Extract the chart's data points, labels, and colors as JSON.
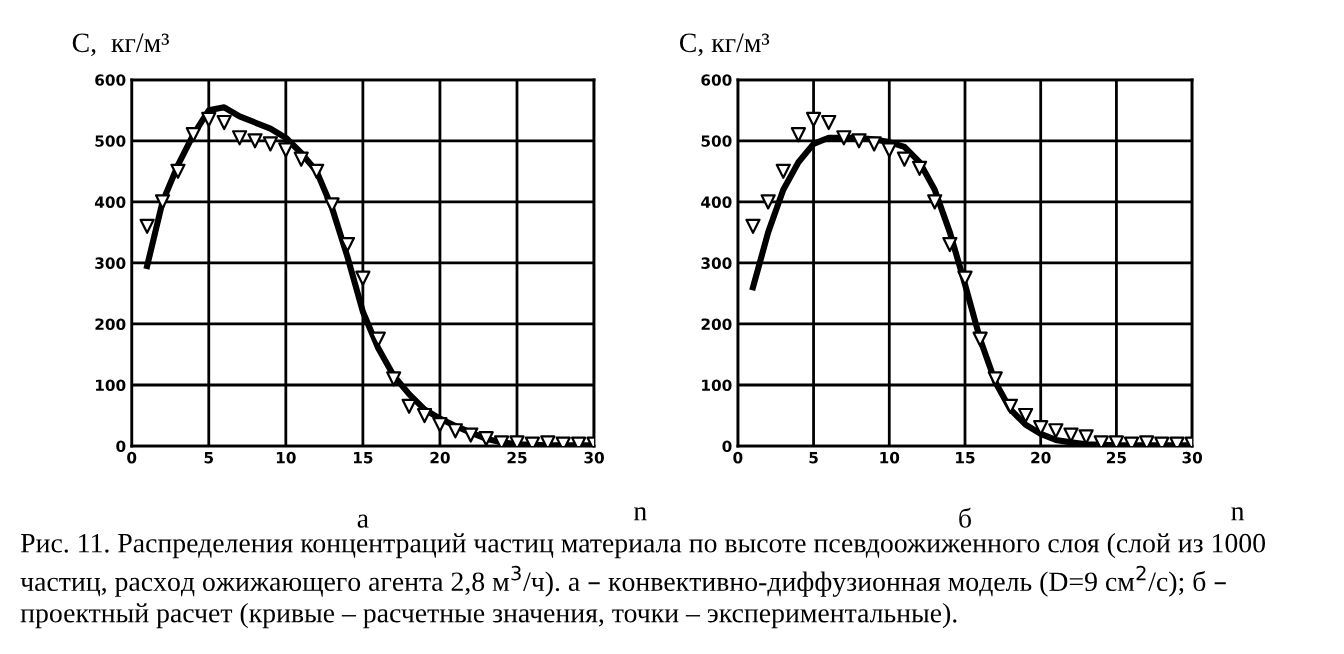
{
  "chart_data": [
    {
      "type": "line",
      "title": "а",
      "xlabel": "n",
      "ylabel": "C,  кг/м³",
      "xlim": [
        0,
        30
      ],
      "ylim": [
        0,
        600
      ],
      "xticks": [
        0,
        5,
        10,
        15,
        20,
        25,
        30
      ],
      "yticks": [
        0,
        100,
        200,
        300,
        400,
        500,
        600
      ],
      "grid": true,
      "legend": false,
      "annotations": [
        "Рис. 11. Распределения концентраций частиц материала по высоте псевдоожиженного слоя (слой из 1000 частиц, расход ожижающего агента 2,8 м$^{3}$/ч). а – конвективно-диффузионная модель (D=9 см$^{2}$/с); б – проектный расчет (кривые – расчетные значения, точки – экспериментальные)."
      ],
      "series": [
        {
          "type": "line",
          "color": "#000000",
          "marker": "none",
          "line_style": "solid",
          "x": [
            1,
            2,
            3,
            4,
            5,
            6,
            7,
            8,
            9,
            10,
            11,
            12,
            13,
            14,
            15,
            16,
            17,
            18,
            19,
            20,
            21,
            22,
            23,
            24,
            25,
            26,
            27,
            28,
            29,
            30
          ],
          "values": [
            295,
            400,
            460,
            510,
            550,
            555,
            540,
            530,
            520,
            505,
            480,
            450,
            390,
            310,
            220,
            160,
            115,
            85,
            60,
            45,
            33,
            22,
            12,
            6,
            3,
            2,
            1,
            1,
            1,
            1
          ]
        },
        {
          "type": "scatter",
          "color": "#000000",
          "marker": "triangle",
          "x": [
            1,
            2,
            3,
            4,
            5,
            6,
            7,
            8,
            9,
            10,
            11,
            12,
            13,
            14,
            15,
            16,
            17,
            18,
            19,
            20,
            21,
            22,
            23,
            24,
            25,
            26,
            27,
            28,
            29,
            30
          ],
          "values": [
            360,
            400,
            450,
            510,
            535,
            530,
            505,
            500,
            495,
            485,
            470,
            450,
            395,
            330,
            275,
            175,
            110,
            65,
            50,
            35,
            25,
            18,
            12,
            5,
            5,
            3,
            5,
            3,
            3,
            3
          ]
        }
      ]
    },
    {
      "type": "line",
      "title": "б",
      "xlabel": "n",
      "ylabel": "C, кг/м³",
      "xlim": [
        0,
        30
      ],
      "ylim": [
        0,
        600
      ],
      "xticks": [
        0,
        5,
        10,
        15,
        20,
        25,
        30
      ],
      "yticks": [
        0,
        100,
        200,
        300,
        400,
        500,
        600
      ],
      "grid": true,
      "legend": false,
      "series": [
        {
          "type": "line",
          "color": "#000000",
          "marker": "none",
          "line_style": "solid",
          "x": [
            1,
            2,
            3,
            4,
            5,
            6,
            7,
            8,
            9,
            10,
            11,
            12,
            13,
            14,
            15,
            16,
            17,
            18,
            19,
            20,
            21,
            22,
            23,
            24,
            25,
            26,
            27,
            28,
            29,
            30
          ],
          "values": [
            260,
            350,
            420,
            465,
            495,
            505,
            505,
            505,
            502,
            498,
            490,
            465,
            420,
            350,
            265,
            175,
            105,
            60,
            35,
            20,
            10,
            6,
            3,
            2,
            1,
            1,
            1,
            1,
            1,
            1
          ]
        },
        {
          "type": "scatter",
          "color": "#000000",
          "marker": "triangle",
          "x": [
            1,
            2,
            3,
            4,
            5,
            6,
            7,
            8,
            9,
            10,
            11,
            12,
            13,
            14,
            15,
            16,
            17,
            18,
            19,
            20,
            21,
            22,
            23,
            24,
            25,
            26,
            27,
            28,
            29,
            30
          ],
          "values": [
            360,
            400,
            450,
            510,
            535,
            530,
            505,
            500,
            495,
            485,
            470,
            455,
            400,
            330,
            275,
            175,
            110,
            65,
            50,
            30,
            25,
            18,
            15,
            5,
            5,
            3,
            5,
            3,
            3,
            3
          ]
        }
      ]
    }
  ]
}
